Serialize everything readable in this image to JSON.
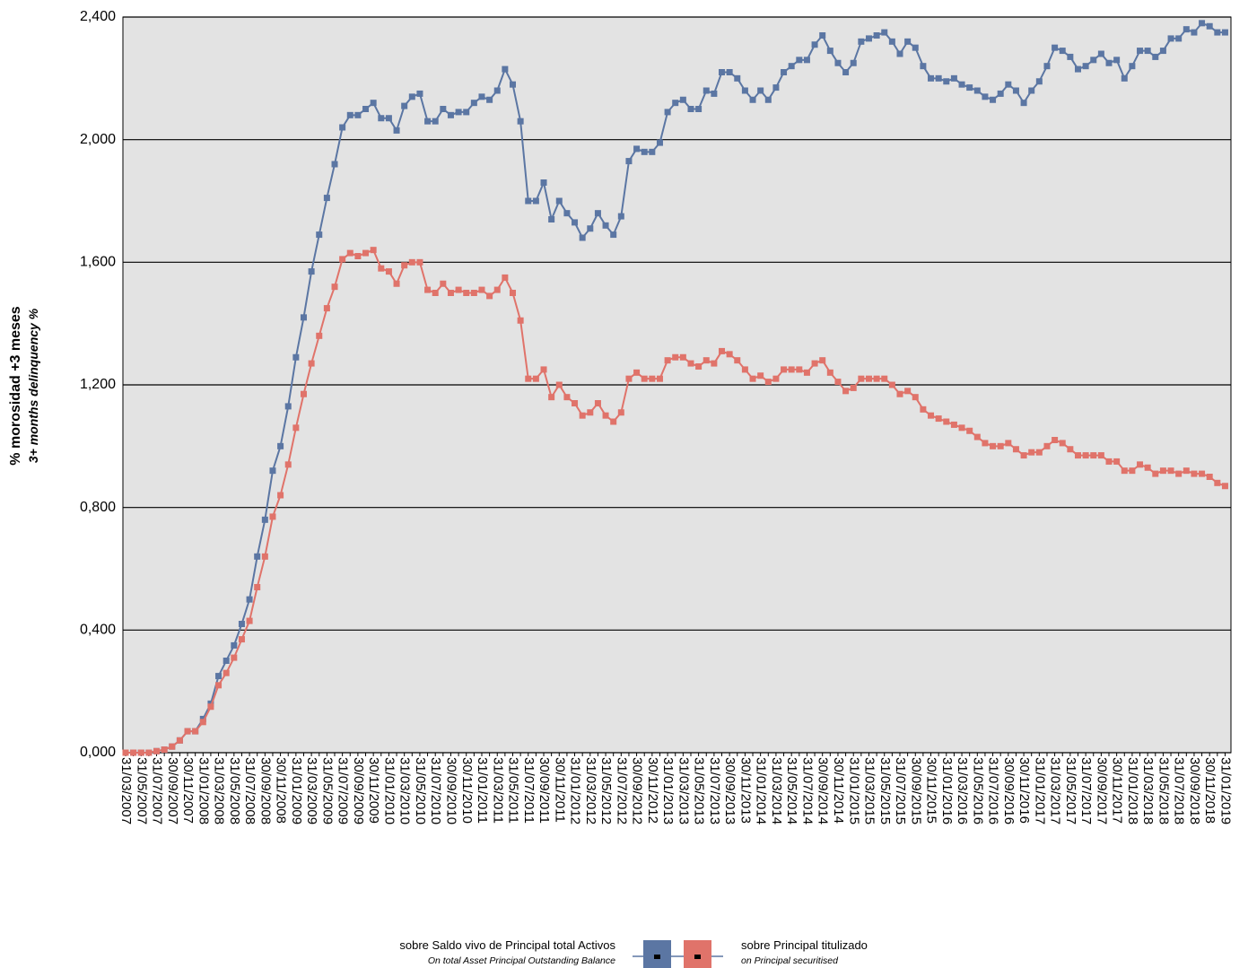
{
  "chart_data": {
    "type": "line",
    "y_label": "% morosidad +3 meses",
    "y_label_en": "3+ months delinquency %",
    "ylim": [
      0,
      2.4
    ],
    "yticks": [
      {
        "value": 0,
        "label": "0,000"
      },
      {
        "value": 0.4,
        "label": "0,400"
      },
      {
        "value": 0.8,
        "label": "0,800"
      },
      {
        "value": 1.2,
        "label": "1,200"
      },
      {
        "value": 1.6,
        "label": "1,600"
      },
      {
        "value": 2.0,
        "label": "2,000"
      },
      {
        "value": 2.4,
        "label": "2,400"
      }
    ],
    "grid": true,
    "categories": [
      "31/03/2007",
      null,
      "31/05/2007",
      null,
      "31/07/2007",
      null,
      "30/09/2007",
      null,
      "30/11/2007",
      null,
      "31/01/2008",
      null,
      "31/03/2008",
      null,
      "31/05/2008",
      null,
      "31/07/2008",
      null,
      "30/09/2008",
      null,
      "30/11/2008",
      null,
      "31/01/2009",
      null,
      "31/03/2009",
      null,
      "31/05/2009",
      null,
      "31/07/2009",
      null,
      "30/09/2009",
      null,
      "30/11/2009",
      null,
      "31/01/2010",
      null,
      "31/03/2010",
      null,
      "31/05/2010",
      null,
      "31/07/2010",
      null,
      "30/09/2010",
      null,
      "30/11/2010",
      null,
      "31/01/2011",
      null,
      "31/03/2011",
      null,
      "31/05/2011",
      null,
      "31/07/2011",
      null,
      "30/09/2011",
      null,
      "30/11/2011",
      null,
      "31/01/2012",
      null,
      "31/03/2012",
      null,
      "31/05/2012",
      null,
      "31/07/2012",
      null,
      "30/09/2012",
      null,
      "30/11/2012",
      null,
      "31/01/2013",
      null,
      "31/03/2013",
      null,
      "31/05/2013",
      null,
      "31/07/2013",
      null,
      "30/09/2013",
      null,
      "30/11/2013",
      null,
      "31/01/2014",
      null,
      "31/03/2014",
      null,
      "31/05/2014",
      null,
      "31/07/2014",
      null,
      "30/09/2014",
      null,
      "30/11/2014",
      null,
      "31/01/2015",
      null,
      "31/03/2015",
      null,
      "31/05/2015",
      null,
      "31/07/2015",
      null,
      "30/09/2015",
      null,
      "30/11/2015",
      null,
      "31/01/2016",
      null,
      "31/03/2016",
      null,
      "31/05/2016",
      null,
      "31/07/2016",
      null,
      "30/09/2016",
      null,
      "30/11/2016",
      null,
      "31/01/2017",
      null,
      "31/03/2017",
      null,
      "31/05/2017",
      null,
      "31/07/2017",
      null,
      "30/09/2017",
      null,
      "30/11/2017",
      null,
      "31/01/2018",
      null,
      "31/03/2018",
      null,
      "31/05/2018",
      null,
      "31/07/2018",
      null,
      "30/09/2018",
      null,
      "30/11/2018",
      null,
      "31/01/2019"
    ],
    "series": [
      {
        "name": "sobre Saldo vivo de Principal total Activos",
        "subtitle": "On total Asset Principal Outstanding Balance",
        "color": "#5b76a3",
        "values": [
          0,
          0,
          0,
          0,
          0.005,
          0.01,
          0.02,
          0.04,
          0.07,
          0.07,
          0.11,
          0.16,
          0.25,
          0.3,
          0.35,
          0.42,
          0.5,
          0.64,
          0.76,
          0.92,
          1.0,
          1.13,
          1.29,
          1.42,
          1.57,
          1.69,
          1.81,
          1.92,
          2.04,
          2.08,
          2.08,
          2.1,
          2.12,
          2.07,
          2.07,
          2.03,
          2.11,
          2.14,
          2.15,
          2.06,
          2.06,
          2.1,
          2.08,
          2.09,
          2.09,
          2.12,
          2.14,
          2.13,
          2.16,
          2.23,
          2.18,
          2.06,
          1.8,
          1.8,
          1.86,
          1.74,
          1.8,
          1.76,
          1.73,
          1.68,
          1.71,
          1.76,
          1.72,
          1.69,
          1.75,
          1.93,
          1.97,
          1.96,
          1.96,
          1.99,
          2.09,
          2.12,
          2.13,
          2.1,
          2.1,
          2.16,
          2.15,
          2.22,
          2.22,
          2.2,
          2.16,
          2.13,
          2.16,
          2.13,
          2.17,
          2.22,
          2.24,
          2.26,
          2.26,
          2.31,
          2.34,
          2.29,
          2.25,
          2.22,
          2.25,
          2.32,
          2.33,
          2.34,
          2.35,
          2.32,
          2.28,
          2.32,
          2.3,
          2.24,
          2.2,
          2.2,
          2.19,
          2.2,
          2.18,
          2.17,
          2.16,
          2.14,
          2.13,
          2.15,
          2.18,
          2.16,
          2.12,
          2.16,
          2.19,
          2.24,
          2.3,
          2.29,
          2.27,
          2.23,
          2.24,
          2.26,
          2.28,
          2.25,
          2.26,
          2.2,
          2.24,
          2.29,
          2.29,
          2.27,
          2.29,
          2.33,
          2.33,
          2.36,
          2.35,
          2.38,
          2.37,
          2.35,
          2.35
        ]
      },
      {
        "name": "sobre Principal titulizado",
        "subtitle": "on Principal securitised",
        "color": "#e0736a",
        "values": [
          0,
          0,
          0,
          0,
          0.005,
          0.01,
          0.02,
          0.04,
          0.07,
          0.07,
          0.1,
          0.15,
          0.22,
          0.26,
          0.31,
          0.37,
          0.43,
          0.54,
          0.64,
          0.77,
          0.84,
          0.94,
          1.06,
          1.17,
          1.27,
          1.36,
          1.45,
          1.52,
          1.61,
          1.63,
          1.62,
          1.63,
          1.64,
          1.58,
          1.57,
          1.53,
          1.59,
          1.6,
          1.6,
          1.51,
          1.5,
          1.53,
          1.5,
          1.51,
          1.5,
          1.5,
          1.51,
          1.49,
          1.51,
          1.55,
          1.5,
          1.41,
          1.22,
          1.22,
          1.25,
          1.16,
          1.2,
          1.16,
          1.14,
          1.1,
          1.11,
          1.14,
          1.1,
          1.08,
          1.11,
          1.22,
          1.24,
          1.22,
          1.22,
          1.22,
          1.28,
          1.29,
          1.29,
          1.27,
          1.26,
          1.28,
          1.27,
          1.31,
          1.3,
          1.28,
          1.25,
          1.22,
          1.23,
          1.21,
          1.22,
          1.25,
          1.25,
          1.25,
          1.24,
          1.27,
          1.28,
          1.24,
          1.21,
          1.18,
          1.19,
          1.22,
          1.22,
          1.22,
          1.22,
          1.2,
          1.17,
          1.18,
          1.16,
          1.12,
          1.1,
          1.09,
          1.08,
          1.07,
          1.06,
          1.05,
          1.03,
          1.01,
          1.0,
          1.0,
          1.01,
          0.99,
          0.97,
          0.98,
          0.98,
          1.0,
          1.02,
          1.01,
          0.99,
          0.97,
          0.97,
          0.97,
          0.97,
          0.95,
          0.95,
          0.92,
          0.92,
          0.94,
          0.93,
          0.91,
          0.92,
          0.92,
          0.91,
          0.92,
          0.91,
          0.91,
          0.9,
          0.88,
          0.87
        ]
      }
    ]
  }
}
